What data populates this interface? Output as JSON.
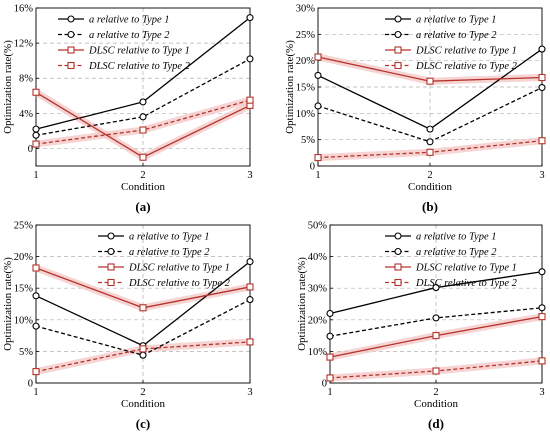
{
  "colors": {
    "black": "#000000",
    "red": "#b5332a",
    "grid": "#b0b0b0",
    "band": "#f4c6c6"
  },
  "chart_data": [
    {
      "panel_label": "(a)",
      "type": "line",
      "xlabel": "Condition",
      "ylabel": "Optimization rate(%)",
      "x": [
        1,
        2,
        3
      ],
      "xticks": [
        "1",
        "2",
        "3"
      ],
      "ylim": [
        -2,
        16
      ],
      "yticks": [
        0,
        4,
        8,
        12,
        16
      ],
      "ytick_labels": [
        "0",
        "4%",
        "8%",
        "12%",
        "16%"
      ],
      "legend_position": "top-left",
      "series": [
        {
          "name": "a relative to Type 1",
          "values": [
            2.2,
            5.3,
            14.9
          ],
          "color": "#000000",
          "dash": "solid"
        },
        {
          "name": "a relative to Type 2",
          "values": [
            1.5,
            3.6,
            10.2
          ],
          "color": "#000000",
          "dash": "dashed"
        },
        {
          "name": "DLSC relative to Type 1",
          "values": [
            6.4,
            -1.0,
            4.9
          ],
          "color": "#b5332a",
          "dash": "solid"
        },
        {
          "name": "DLSC relative to Type 2",
          "values": [
            0.5,
            2.1,
            5.5
          ],
          "color": "#b5332a",
          "dash": "dashed"
        }
      ]
    },
    {
      "panel_label": "(b)",
      "type": "line",
      "xlabel": "Condition",
      "ylabel": "Optimization rate(%)",
      "x": [
        1,
        2,
        3
      ],
      "xticks": [
        "1",
        "2",
        "3"
      ],
      "ylim": [
        0,
        30
      ],
      "yticks": [
        0,
        5,
        10,
        15,
        20,
        25,
        30
      ],
      "ytick_labels": [
        "0",
        "5%",
        "10%",
        "15%",
        "20%",
        "25%",
        "30%"
      ],
      "legend_position": "top-center",
      "series": [
        {
          "name": "a relative to Type 1",
          "values": [
            17.2,
            7.0,
            22.2
          ],
          "color": "#000000",
          "dash": "solid"
        },
        {
          "name": "a relative to Type 2",
          "values": [
            11.4,
            4.6,
            14.9
          ],
          "color": "#000000",
          "dash": "dashed"
        },
        {
          "name": "DLSC relative to Type 1",
          "values": [
            20.7,
            16.1,
            16.8
          ],
          "color": "#b5332a",
          "dash": "solid"
        },
        {
          "name": "DLSC relative to Type 2",
          "values": [
            1.6,
            2.6,
            4.8
          ],
          "color": "#b5332a",
          "dash": "dashed"
        }
      ]
    },
    {
      "panel_label": "(c)",
      "type": "line",
      "xlabel": "Condition",
      "ylabel": "Optimization rate(%)",
      "x": [
        1,
        2,
        3
      ],
      "xticks": [
        "1",
        "2",
        "3"
      ],
      "ylim": [
        0,
        25
      ],
      "yticks": [
        0,
        5,
        10,
        15,
        20,
        25
      ],
      "ytick_labels": [
        "0",
        "5%",
        "10%",
        "15%",
        "20%",
        "25%"
      ],
      "legend_position": "top-center",
      "series": [
        {
          "name": "a relative to Type 1",
          "values": [
            13.8,
            5.9,
            19.2
          ],
          "color": "#000000",
          "dash": "solid"
        },
        {
          "name": "a relative to Type 2",
          "values": [
            9.0,
            4.4,
            13.2
          ],
          "color": "#000000",
          "dash": "dashed"
        },
        {
          "name": "DLSC relative to Type 1",
          "values": [
            18.2,
            11.9,
            15.2
          ],
          "color": "#b5332a",
          "dash": "solid"
        },
        {
          "name": "DLSC relative to Type 2",
          "values": [
            1.8,
            5.4,
            6.5
          ],
          "color": "#b5332a",
          "dash": "dashed"
        }
      ]
    },
    {
      "panel_label": "(d)",
      "type": "line",
      "xlabel": "Condition",
      "ylabel": "Optimization rate(%)",
      "x": [
        1,
        2,
        3
      ],
      "xticks": [
        "1",
        "2",
        "3"
      ],
      "ylim": [
        0,
        50
      ],
      "yticks": [
        0,
        10,
        20,
        30,
        40,
        50
      ],
      "ytick_labels": [
        "0",
        "10%",
        "20%",
        "30%",
        "40%",
        "50%"
      ],
      "legend_position": "top-center",
      "series": [
        {
          "name": "a relative to Type 1",
          "values": [
            22.0,
            30.2,
            35.2
          ],
          "color": "#000000",
          "dash": "solid"
        },
        {
          "name": "a relative to Type 2",
          "values": [
            14.8,
            20.6,
            23.8
          ],
          "color": "#000000",
          "dash": "dashed"
        },
        {
          "name": "DLSC relative to Type 1",
          "values": [
            8.2,
            15.0,
            21.0
          ],
          "color": "#b5332a",
          "dash": "solid"
        },
        {
          "name": "DLSC relative to Type 2",
          "values": [
            1.6,
            3.8,
            7.0
          ],
          "color": "#b5332a",
          "dash": "dashed"
        }
      ]
    }
  ]
}
